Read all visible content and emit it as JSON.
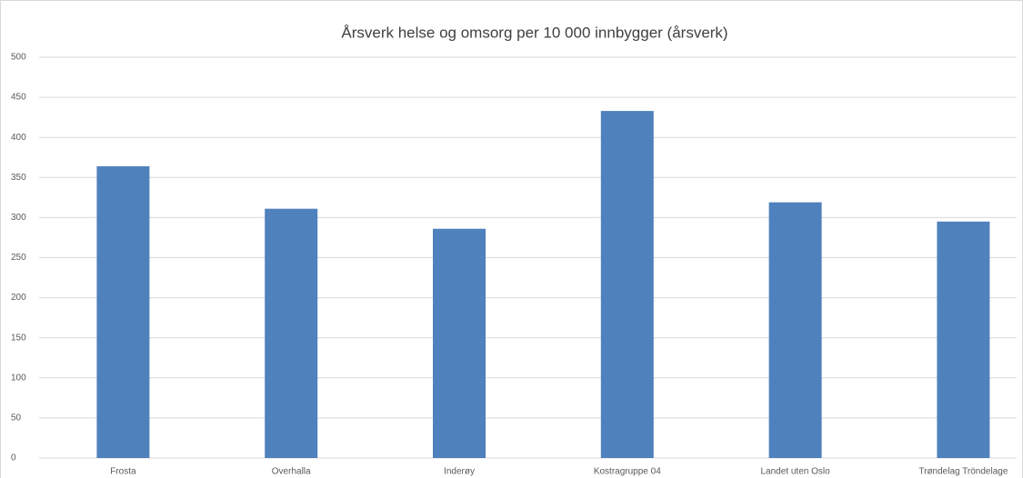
{
  "chart_data": {
    "type": "bar",
    "title": "Årsverk helse og omsorg per 10 000 innbygger (årsverk)",
    "categories": [
      "Frosta",
      "Overhalla",
      "Inderøy",
      "Kostragruppe 04",
      "Landet uten Oslo",
      "Trøndelag Tröndelage"
    ],
    "values": [
      364,
      311,
      286,
      433,
      319,
      295
    ],
    "color": "#4f81bd",
    "ylim": [
      0,
      500
    ],
    "yticks": [
      0,
      50,
      100,
      150,
      200,
      250,
      300,
      350,
      400,
      450,
      500
    ],
    "grid": true
  }
}
